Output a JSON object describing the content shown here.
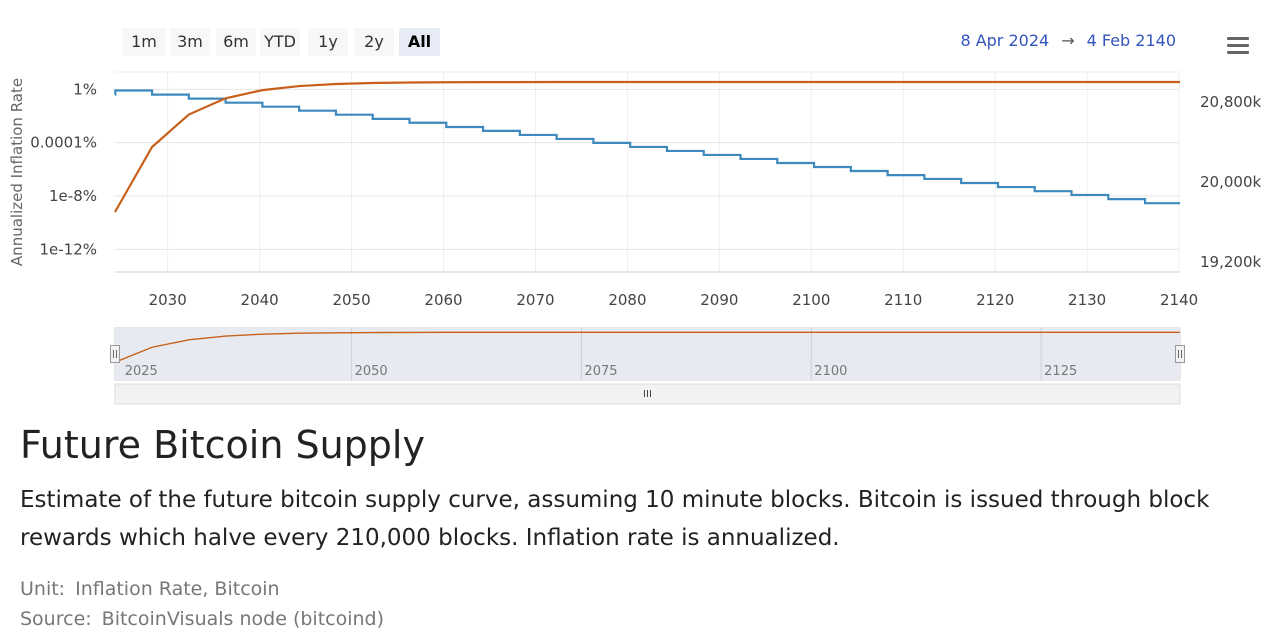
{
  "toolbar": {
    "range_buttons": [
      "1m",
      "3m",
      "6m",
      "YTD",
      "1y",
      "2y",
      "All"
    ],
    "active_range": "All",
    "date_from": "8 Apr 2024",
    "arrow": "→",
    "date_to": "4 Feb 2140",
    "menu_icon": "hamburger-menu-icon"
  },
  "chart_data": {
    "type": "line",
    "grid": true,
    "x_axis": {
      "ticks": [
        "2030",
        "2040",
        "2050",
        "2060",
        "2070",
        "2080",
        "2090",
        "2100",
        "2110",
        "2120",
        "2130",
        "2140"
      ],
      "range": [
        2024.27,
        2140.1
      ]
    },
    "y_left": {
      "label": "Annualized Inflation Rate",
      "scale": "log",
      "ticks": [
        "1%",
        "0.0001%",
        "1e-8%",
        "1e-12%"
      ],
      "range_log10": [
        -13.7,
        1.3
      ]
    },
    "y_right": {
      "ticks": [
        "20,800k",
        "20,000k",
        "19,200k"
      ],
      "range": [
        19100000,
        21100000
      ]
    },
    "series": [
      {
        "axis": "left",
        "color": "#3d88bd",
        "points": [
          [
            2024.27,
            0.4
          ],
          [
            2024.3,
            0.82
          ],
          [
            2028.3,
            0.4
          ],
          [
            2032.3,
            0.2
          ],
          [
            2036.3,
            0.1
          ],
          [
            2040.3,
            0.05
          ],
          [
            2044.3,
            0.025
          ],
          [
            2048.3,
            0.0125
          ],
          [
            2052.3,
            0.0061
          ],
          [
            2056.3,
            0.0031
          ],
          [
            2060.3,
            0.0015
          ],
          [
            2064.3,
            0.00077
          ],
          [
            2068.3,
            0.00038
          ],
          [
            2072.3,
            0.00019
          ],
          [
            2076.3,
            9.6e-05
          ],
          [
            2080.3,
            4.8e-05
          ],
          [
            2084.3,
            2.4e-05
          ],
          [
            2088.3,
            1.2e-05
          ],
          [
            2092.3,
            6e-06
          ],
          [
            2096.3,
            3e-06
          ],
          [
            2100.3,
            1.5e-06
          ],
          [
            2104.3,
            7.5e-07
          ],
          [
            2108.3,
            3.7e-07
          ],
          [
            2112.3,
            1.9e-07
          ],
          [
            2116.3,
            9.4e-08
          ],
          [
            2120.3,
            4.7e-08
          ],
          [
            2124.3,
            2.3e-08
          ],
          [
            2128.3,
            1.2e-08
          ],
          [
            2132.3,
            5.8e-09
          ],
          [
            2136.3,
            2.9e-09
          ],
          [
            2140.1,
            2.9e-09
          ]
        ]
      },
      {
        "axis": "right",
        "color": "#c8601a",
        "points": [
          [
            2024.27,
            19700000
          ],
          [
            2028.3,
            20350000
          ],
          [
            2032.3,
            20675000
          ],
          [
            2036.3,
            20837500
          ],
          [
            2040.3,
            20918750
          ],
          [
            2044.3,
            20959375
          ],
          [
            2048.3,
            20979688
          ],
          [
            2052.3,
            20989844
          ],
          [
            2056.3,
            20994922
          ],
          [
            2060.3,
            20997461
          ],
          [
            2064.3,
            20998730
          ],
          [
            2072.3,
            20999680
          ],
          [
            2090,
            20999950
          ],
          [
            2140.1,
            21000000
          ]
        ]
      }
    ],
    "navigator": {
      "ticks": [
        "2025",
        "2050",
        "2075",
        "2100",
        "2125"
      ],
      "range": [
        2024.27,
        2140.1
      ]
    }
  },
  "info": {
    "title": "Future Bitcoin Supply",
    "description": "Estimate of the future bitcoin supply curve, assuming 10 minute blocks. Bitcoin is issued through block rewards which halve every 210,000 blocks. Inflation rate is annualized.",
    "unit_label": "Unit:",
    "unit_value": "Inflation Rate, Bitcoin",
    "source_label": "Source:",
    "source_value": "BitcoinVisuals node (bitcoind)"
  }
}
